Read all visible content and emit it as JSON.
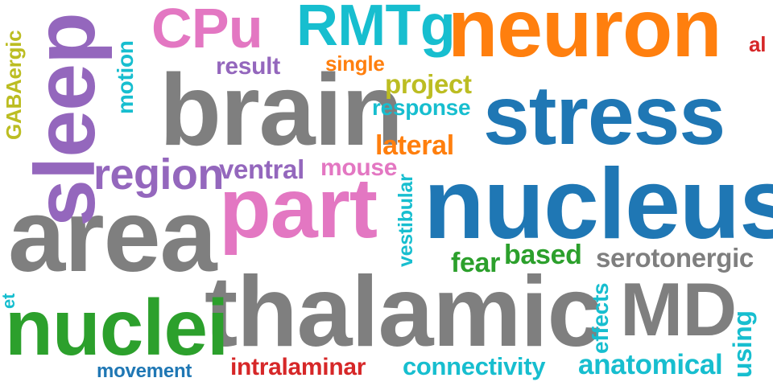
{
  "colors": {
    "blue": "#1f77b4",
    "orange": "#ff7f0e",
    "green": "#2ca02c",
    "red": "#d62728",
    "purple": "#9467bd",
    "pink": "#e377c2",
    "gray": "#7f7f7f",
    "olive": "#bcbd22",
    "cyan": "#17becf"
  },
  "words": [
    {
      "key": "neuron",
      "text": "neuron",
      "color": "orange"
    },
    {
      "key": "stress",
      "text": "stress",
      "color": "blue"
    },
    {
      "key": "nucleus",
      "text": "nucleus",
      "color": "blue"
    },
    {
      "key": "thalamic",
      "text": "thalamic",
      "color": "gray"
    },
    {
      "key": "brain",
      "text": "brain",
      "color": "gray"
    },
    {
      "key": "area",
      "text": "area",
      "color": "gray"
    },
    {
      "key": "part",
      "text": "part",
      "color": "pink"
    },
    {
      "key": "sleep",
      "text": "sleep",
      "color": "purple"
    },
    {
      "key": "nuclei",
      "text": "nuclei",
      "color": "green"
    },
    {
      "key": "md",
      "text": "MD",
      "color": "gray"
    },
    {
      "key": "cpu",
      "text": "CPu",
      "color": "pink"
    },
    {
      "key": "rmtg",
      "text": "RMTg",
      "color": "cyan"
    },
    {
      "key": "region",
      "text": "region",
      "color": "purple"
    },
    {
      "key": "serotonergic",
      "text": "serotonergic",
      "color": "gray"
    },
    {
      "key": "anatomical",
      "text": "anatomical",
      "color": "cyan"
    },
    {
      "key": "connectivity",
      "text": "connectivity",
      "color": "cyan"
    },
    {
      "key": "intralaminar",
      "text": "intralaminar",
      "color": "red"
    },
    {
      "key": "ventral",
      "text": "ventral",
      "color": "purple"
    },
    {
      "key": "lateral",
      "text": "lateral",
      "color": "orange"
    },
    {
      "key": "project",
      "text": "project",
      "color": "olive"
    },
    {
      "key": "response",
      "text": "response",
      "color": "cyan"
    },
    {
      "key": "mouse",
      "text": "mouse",
      "color": "pink"
    },
    {
      "key": "fear",
      "text": "fear",
      "color": "green"
    },
    {
      "key": "based",
      "text": "based",
      "color": "green"
    },
    {
      "key": "result",
      "text": "result",
      "color": "purple"
    },
    {
      "key": "single",
      "text": "single",
      "color": "orange"
    },
    {
      "key": "movement",
      "text": "movement",
      "color": "blue"
    },
    {
      "key": "al",
      "text": "al",
      "color": "red"
    },
    {
      "key": "gabaergic",
      "text": "GABAergic",
      "color": "olive"
    },
    {
      "key": "motion",
      "text": "motion",
      "color": "cyan"
    },
    {
      "key": "vestibular",
      "text": "vestibular",
      "color": "cyan"
    },
    {
      "key": "effects",
      "text": "effects",
      "color": "cyan"
    },
    {
      "key": "using",
      "text": "using",
      "color": "cyan"
    },
    {
      "key": "et",
      "text": "et",
      "color": "cyan"
    }
  ]
}
